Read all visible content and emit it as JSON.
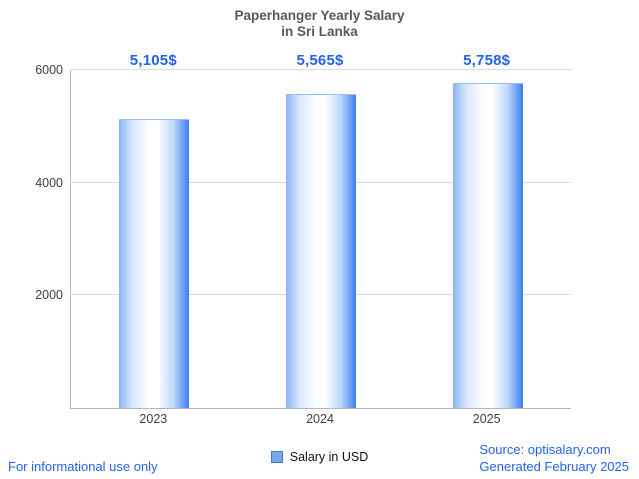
{
  "title": {
    "line1": "Paperhanger Yearly Salary",
    "line2": "in Sri Lanka"
  },
  "chart_data": {
    "type": "bar",
    "title": "Paperhanger Yearly Salary in Sri Lanka",
    "categories": [
      "2023",
      "2024",
      "2025"
    ],
    "values": [
      5105,
      5565,
      5758
    ],
    "value_labels": [
      "5,105$",
      "5,565$",
      "5,758$"
    ],
    "yticks": [
      2000,
      4000,
      6000
    ],
    "ylim": [
      0,
      6000
    ],
    "xlabel": "",
    "ylabel": "",
    "grid": "horizontal",
    "legend": {
      "label": "Salary in USD",
      "position": "bottom"
    }
  },
  "footer": {
    "left": "For informational use only",
    "source": "Source: optisalary.com",
    "generated": "Generated February 2025"
  },
  "colors": {
    "value_label": "#2563eb",
    "footer_link": "#2563eb",
    "bar_accent": "#3b7df0",
    "grid": "#dcdcdc",
    "title": "#595959"
  }
}
